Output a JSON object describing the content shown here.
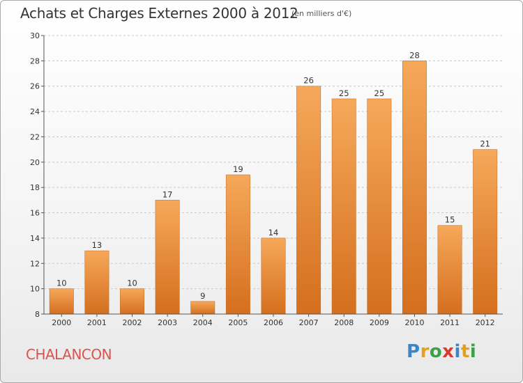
{
  "header": {
    "title": "Achats et Charges Externes 2000 à 2012",
    "subtitle": "(en milliers d'€)"
  },
  "footer": {
    "commune": "CHALANCON",
    "brand_letters": [
      "P",
      "r",
      "o",
      "x",
      "i",
      "t",
      "i"
    ]
  },
  "colors": {
    "bar_light": "#f6a85a",
    "bar_dark": "#d46f1e",
    "grid": "#c8c8c8",
    "axis": "#555555"
  },
  "chart_data": {
    "type": "bar",
    "title": "Achats et Charges Externes 2000 à 2012",
    "subtitle": "(en milliers d'€)",
    "categories": [
      "2000",
      "2001",
      "2002",
      "2003",
      "2004",
      "2005",
      "2006",
      "2007",
      "2008",
      "2009",
      "2010",
      "2011",
      "2012"
    ],
    "values": [
      10,
      13,
      10,
      17,
      9,
      19,
      14,
      26,
      25,
      25,
      28,
      15,
      21
    ],
    "ylim": [
      8,
      30
    ],
    "yticks": [
      8,
      10,
      12,
      14,
      16,
      18,
      20,
      22,
      24,
      26,
      28,
      30
    ],
    "grid": "horizontal dashed",
    "data_labels": true
  }
}
